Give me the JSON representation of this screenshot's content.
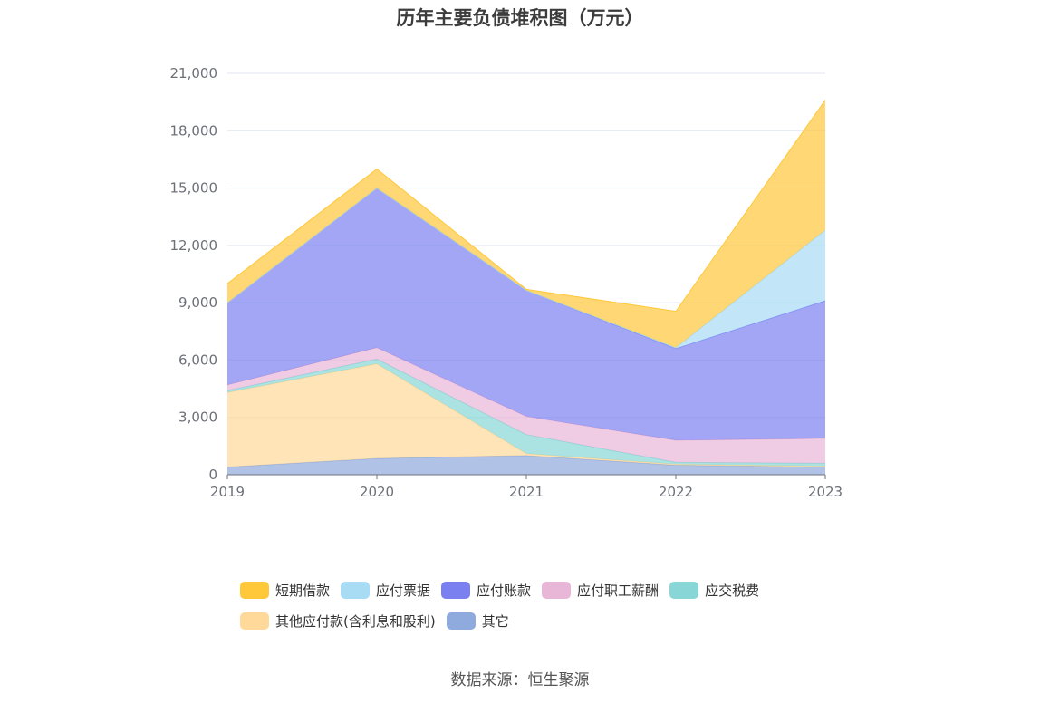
{
  "chart_data": {
    "type": "area",
    "stacked": true,
    "title": "历年主要负债堆积图（万元）",
    "xlabel": "",
    "ylabel": "",
    "categories": [
      "2019",
      "2020",
      "2021",
      "2022",
      "2023"
    ],
    "ylim": [
      0,
      21000
    ],
    "yticks": [
      0,
      3000,
      6000,
      9000,
      12000,
      15000,
      18000,
      21000
    ],
    "ytick_labels": [
      "0",
      "3,000",
      "6,000",
      "9,000",
      "12,000",
      "15,000",
      "18,000",
      "21,000"
    ],
    "grid": true,
    "legend_position": "bottom",
    "series": [
      {
        "name": "其它",
        "color": "#8faadc",
        "values": [
          400,
          850,
          1000,
          500,
          400
        ]
      },
      {
        "name": "其他应付款(含利息和股利)",
        "color": "#ffd99a",
        "values": [
          3900,
          4950,
          100,
          50,
          50
        ]
      },
      {
        "name": "应交税费",
        "color": "#88d6d6",
        "values": [
          100,
          250,
          1000,
          100,
          150
        ]
      },
      {
        "name": "应付职工薪酬",
        "color": "#e8b7d8",
        "values": [
          300,
          600,
          950,
          1150,
          1300
        ]
      },
      {
        "name": "应付账款",
        "color": "#7b80f0",
        "values": [
          4300,
          8350,
          6600,
          4800,
          7200
        ]
      },
      {
        "name": "应付票据",
        "color": "#a8dcf5",
        "values": [
          0,
          0,
          0,
          50,
          3700
        ]
      },
      {
        "name": "短期借款",
        "color": "#ffc83a",
        "values": [
          1000,
          1000,
          50,
          1900,
          6800
        ]
      }
    ],
    "legend_order": [
      "短期借款",
      "应付票据",
      "应付账款",
      "应付职工薪酬",
      "应交税费",
      "其他应付款(含利息和股利)",
      "其它"
    ],
    "source": "数据来源：恒生聚源"
  }
}
